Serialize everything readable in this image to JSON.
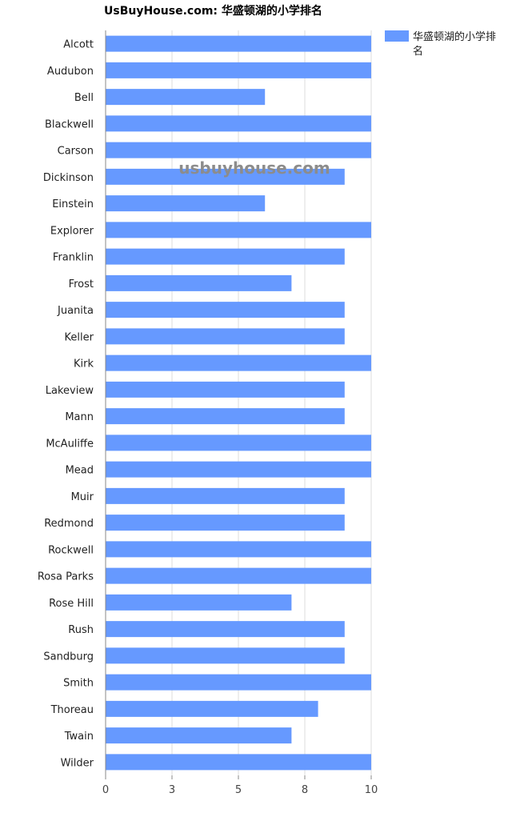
{
  "chart_data": {
    "type": "bar",
    "orientation": "horizontal",
    "title": "UsBuyHouse.com: 华盛顿湖的小学排名",
    "watermark": "usbuyhouse.com",
    "categories": [
      "Alcott",
      "Audubon",
      "Bell",
      "Blackwell",
      "Carson",
      "Dickinson",
      "Einstein",
      "Explorer",
      "Franklin",
      "Frost",
      "Juanita",
      "Keller",
      "Kirk",
      "Lakeview",
      "Mann",
      "McAuliffe",
      "Mead",
      "Muir",
      "Redmond",
      "Rockwell",
      "Rosa Parks",
      "Rose Hill",
      "Rush",
      "Sandburg",
      "Smith",
      "Thoreau",
      "Twain",
      "Wilder"
    ],
    "series": [
      {
        "name": "华盛顿湖的小学排名",
        "color": "#6699ff",
        "values": [
          10,
          10,
          6,
          10,
          10,
          9,
          6,
          10,
          9,
          7,
          9,
          9,
          10,
          9,
          9,
          10,
          10,
          9,
          9,
          10,
          10,
          7,
          9,
          9,
          10,
          8,
          7,
          10
        ]
      }
    ],
    "xlim": [
      0,
      10
    ],
    "x_ticks": [
      0,
      2.5,
      5,
      7.5,
      10
    ],
    "x_tick_labels": [
      "0",
      "3",
      "5",
      "8",
      "10"
    ],
    "grid": "vertical",
    "legend": "top-right"
  }
}
